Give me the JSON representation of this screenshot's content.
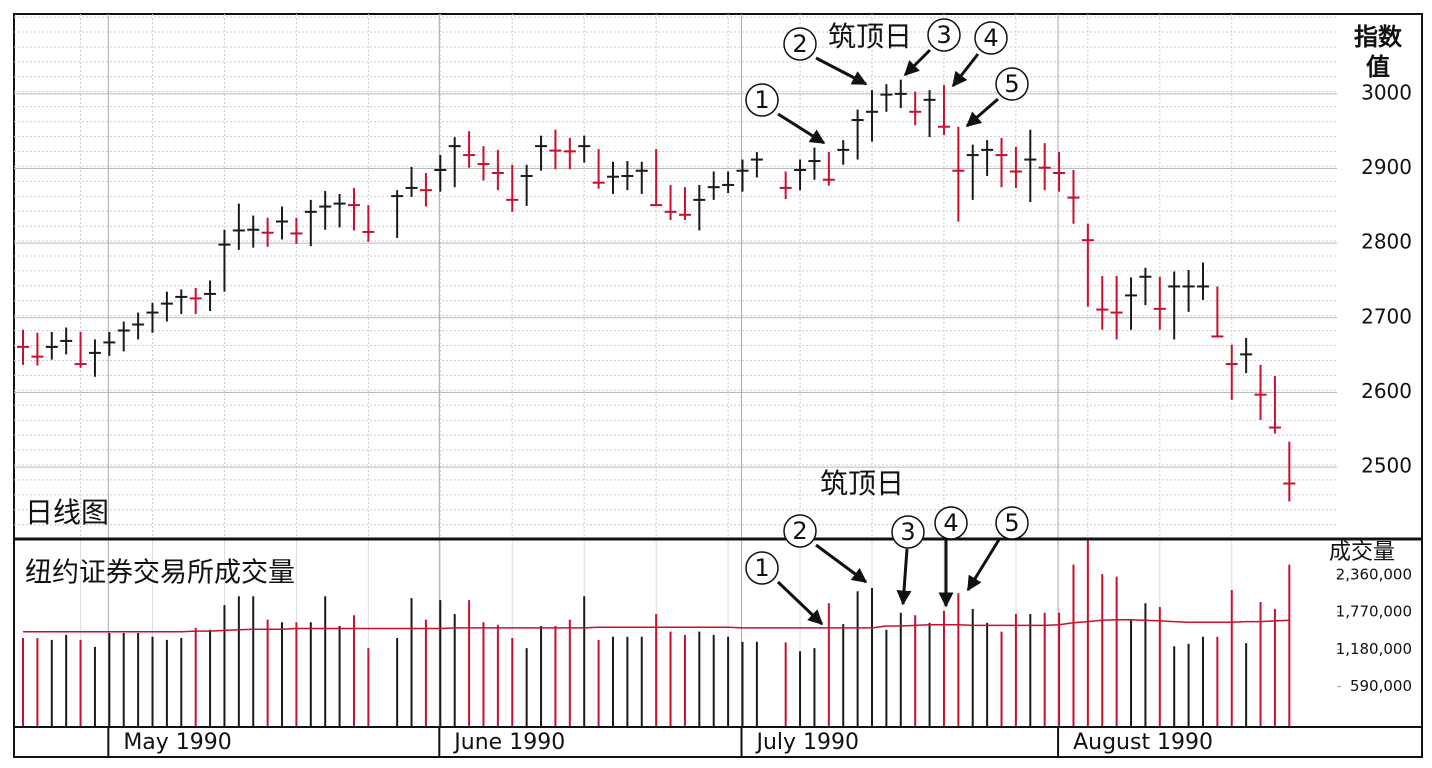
{
  "chart_data": [
    {
      "type": "ohlc",
      "label": "日线图",
      "y_axis_label": [
        "指数",
        "值"
      ],
      "annotation_label": "筑顶日",
      "annotations": [
        "1",
        "2",
        "3",
        "4",
        "5"
      ],
      "ylim": [
        2405,
        3107
      ],
      "yticks": [
        2500,
        2600,
        2700,
        2800,
        2900,
        3000
      ],
      "grid": true,
      "high": [
        2684,
        2680,
        2681,
        2687,
        2681,
        2671,
        2681,
        2695,
        2707,
        2720,
        2735,
        2738,
        2740,
        2750,
        2818,
        2853,
        2837,
        2834,
        2849,
        2834,
        2858,
        2870,
        2866,
        2874,
        2851,
        null,
        2871,
        2902,
        2894,
        2918,
        2942,
        2950,
        2930,
        2925,
        2905,
        2905,
        2944,
        2952,
        2941,
        2944,
        2926,
        2909,
        2910,
        2909,
        2926,
        2878,
        2875,
        2878,
        2896,
        2896,
        2912,
        2922,
        null,
        2896,
        2912,
        2928,
        2922,
        2938,
        2979,
        3005,
        3013,
        3019,
        3003,
        3005,
        3012,
        2956,
        2932,
        2938,
        2941,
        2929,
        2952,
        2934,
        2922,
        2898,
        2826,
        2756,
        2756,
        2754,
        2767,
        2755,
        2762,
        2764,
        2774,
        2742,
        2664,
        2673,
        2637,
        2622,
        2534
      ],
      "low": [
        2637,
        2636,
        2644,
        2651,
        2633,
        2621,
        2649,
        2655,
        2671,
        2680,
        2695,
        2705,
        2705,
        2709,
        2735,
        2791,
        2794,
        2795,
        2805,
        2799,
        2796,
        2818,
        2821,
        2817,
        2802,
        null,
        2807,
        2862,
        2849,
        2869,
        2875,
        2901,
        2884,
        2871,
        2842,
        2850,
        2897,
        2899,
        2899,
        2908,
        2873,
        2866,
        2871,
        2866,
        2851,
        2831,
        2831,
        2817,
        2858,
        2867,
        2869,
        2888,
        null,
        2859,
        2871,
        2885,
        2877,
        2905,
        2912,
        2936,
        2976,
        2981,
        2958,
        2942,
        2945,
        2829,
        2858,
        2890,
        2875,
        2874,
        2855,
        2871,
        2869,
        2826,
        2715,
        2684,
        2671,
        2684,
        2717,
        2684,
        2671,
        2708,
        2724,
        2675,
        2590,
        2626,
        2563,
        2545,
        2454
      ],
      "close": [
        2661,
        2648,
        2661,
        2669,
        2638,
        2653,
        2667,
        2683,
        2691,
        2707,
        2719,
        2728,
        2726,
        2732,
        2798,
        2817,
        2818,
        2814,
        2829,
        2813,
        2842,
        2849,
        2853,
        2851,
        2815,
        null,
        2863,
        2874,
        2871,
        2898,
        2930,
        2918,
        2906,
        2894,
        2858,
        2890,
        2930,
        2924,
        2923,
        2930,
        2881,
        2889,
        2890,
        2897,
        2851,
        2842,
        2838,
        2858,
        2875,
        2878,
        2897,
        2912,
        null,
        2874,
        2898,
        2910,
        2885,
        2925,
        2965,
        2976,
        2999,
        3000,
        2976,
        2992,
        2956,
        2897,
        2918,
        2925,
        2918,
        2896,
        2912,
        2901,
        2894,
        2861,
        2804,
        2711,
        2707,
        2730,
        2755,
        2712,
        2742,
        2742,
        2742,
        2675,
        2638,
        2651,
        2597,
        2553,
        2478
      ],
      "colors": [
        "#c8102e",
        "#c8102e",
        "#1a1a1a",
        "#1a1a1a",
        "#c8102e",
        "#1a1a1a",
        "#1a1a1a",
        "#1a1a1a",
        "#1a1a1a",
        "#1a1a1a",
        "#1a1a1a",
        "#1a1a1a",
        "#c8102e",
        "#1a1a1a",
        "#1a1a1a",
        "#1a1a1a",
        "#1a1a1a",
        "#c8102e",
        "#1a1a1a",
        "#c8102e",
        "#1a1a1a",
        "#1a1a1a",
        "#1a1a1a",
        "#c8102e",
        "#c8102e",
        null,
        "#1a1a1a",
        "#1a1a1a",
        "#c8102e",
        "#1a1a1a",
        "#1a1a1a",
        "#c8102e",
        "#c8102e",
        "#c8102e",
        "#c8102e",
        "#1a1a1a",
        "#1a1a1a",
        "#c8102e",
        "#c8102e",
        "#1a1a1a",
        "#c8102e",
        "#1a1a1a",
        "#1a1a1a",
        "#1a1a1a",
        "#c8102e",
        "#c8102e",
        "#c8102e",
        "#1a1a1a",
        "#1a1a1a",
        "#1a1a1a",
        "#1a1a1a",
        "#1a1a1a",
        null,
        "#c8102e",
        "#1a1a1a",
        "#1a1a1a",
        "#c8102e",
        "#1a1a1a",
        "#1a1a1a",
        "#1a1a1a",
        "#1a1a1a",
        "#1a1a1a",
        "#c8102e",
        "#1a1a1a",
        "#c8102e",
        "#c8102e",
        "#1a1a1a",
        "#1a1a1a",
        "#c8102e",
        "#c8102e",
        "#1a1a1a",
        "#c8102e",
        "#c8102e",
        "#c8102e",
        "#c8102e",
        "#c8102e",
        "#c8102e",
        "#1a1a1a",
        "#1a1a1a",
        "#c8102e",
        "#1a1a1a",
        "#1a1a1a",
        "#1a1a1a",
        "#c8102e",
        "#c8102e",
        "#1a1a1a",
        "#c8102e",
        "#c8102e",
        "#c8102e"
      ]
    },
    {
      "type": "volume",
      "title": "纽约证券交易所成交量",
      "y_axis_label": "成交量",
      "annotation_label": "筑顶日",
      "annotations": [
        "1",
        "2",
        "3",
        "4",
        "5"
      ],
      "ylim": [
        0,
        2910000
      ],
      "yticks": [
        {
          "value": 590000,
          "label": "590,000"
        },
        {
          "value": 1180000,
          "label": "1,180,000"
        },
        {
          "value": 1770000,
          "label": "1,770,000"
        },
        {
          "value": 2360000,
          "label": "2,360,000"
        }
      ],
      "months": [
        {
          "label": null,
          "days": 6
        },
        {
          "label": "May 1990",
          "days": 23
        },
        {
          "label": "June 1990",
          "days": 21
        },
        {
          "label": "July 1990",
          "days": 22
        },
        {
          "label": "August 1990",
          "days": 17
        }
      ],
      "values": [
        1360000,
        1360000,
        1330000,
        1410000,
        1330000,
        1220000,
        1440000,
        1440000,
        1440000,
        1380000,
        1330000,
        1360000,
        1520000,
        1490000,
        1880000,
        2020000,
        2020000,
        1650000,
        1610000,
        1610000,
        1610000,
        2020000,
        1550000,
        1720000,
        1200000,
        null,
        1360000,
        1990000,
        1650000,
        1960000,
        1740000,
        1960000,
        1610000,
        1570000,
        1360000,
        1200000,
        1550000,
        1550000,
        1650000,
        2020000,
        1330000,
        1380000,
        1380000,
        1380000,
        1740000,
        1460000,
        1410000,
        1460000,
        1410000,
        1380000,
        1300000,
        1300000,
        null,
        1290000,
        1150000,
        1200000,
        1910000,
        1580000,
        2100000,
        2150000,
        1490000,
        1760000,
        1720000,
        1600000,
        1790000,
        2070000,
        1820000,
        1600000,
        1460000,
        1740000,
        1740000,
        1760000,
        1760000,
        2520000,
        2910000,
        2370000,
        2330000,
        1650000,
        1910000,
        1850000,
        1230000,
        1270000,
        1380000,
        1380000,
        2120000,
        1280000,
        1930000,
        1820000,
        2520000
      ],
      "average": {
        "color": "#c8102e",
        "values": [
          1460000,
          1460000,
          1460000,
          1460000,
          1460000,
          1460000,
          1460000,
          1460000,
          1460000,
          1460000,
          1460000,
          1460000,
          1470000,
          1470000,
          1480000,
          1490000,
          1500000,
          1500000,
          1500000,
          1510000,
          1510000,
          1510000,
          1510000,
          1510000,
          1510000,
          1510000,
          1510000,
          1510000,
          1510000,
          1510000,
          1520000,
          1520000,
          1520000,
          1520000,
          1520000,
          1520000,
          1520000,
          1520000,
          1520000,
          1520000,
          1530000,
          1530000,
          1530000,
          1530000,
          1530000,
          1530000,
          1530000,
          1530000,
          1530000,
          1530000,
          1520000,
          1520000,
          1520000,
          1520000,
          1520000,
          1520000,
          1520000,
          1520000,
          1520000,
          1520000,
          1550000,
          1550000,
          1560000,
          1570000,
          1570000,
          1570000,
          1560000,
          1560000,
          1560000,
          1560000,
          1560000,
          1560000,
          1570000,
          1600000,
          1620000,
          1640000,
          1650000,
          1650000,
          1640000,
          1630000,
          1620000,
          1610000,
          1610000,
          1610000,
          1610000,
          1620000,
          1620000,
          1630000,
          1640000
        ]
      }
    }
  ]
}
